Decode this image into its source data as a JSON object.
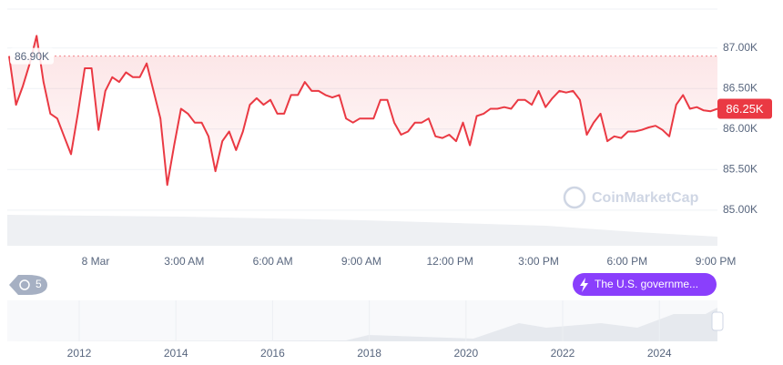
{
  "chart_data": {
    "type": "line",
    "series": [
      {
        "color": "#ea3943",
        "values": [
          86900,
          86300,
          86530,
          86810,
          87150,
          86580,
          86190,
          86130,
          85910,
          85690,
          86190,
          86750,
          86750,
          85990,
          86470,
          86640,
          86580,
          86700,
          86640,
          86640,
          86810,
          86470,
          86130,
          85310,
          85800,
          86250,
          86190,
          86080,
          86080,
          85910,
          85480,
          85850,
          85970,
          85740,
          85970,
          86300,
          86380,
          86300,
          86360,
          86190,
          86190,
          86420,
          86420,
          86580,
          86470,
          86470,
          86420,
          86390,
          86420,
          86130,
          86080,
          86130,
          86130,
          86130,
          86360,
          86360,
          86080,
          85930,
          85970,
          86080,
          86080,
          86130,
          85910,
          85890,
          85930,
          85850,
          86080,
          85800,
          86160,
          86190,
          86250,
          86250,
          86270,
          86250,
          86360,
          86360,
          86300,
          86470,
          86270,
          86380,
          86470,
          86450,
          86470,
          86360,
          85930,
          86080,
          86190,
          85850,
          85910,
          85890,
          85970,
          85970,
          85990,
          86020,
          86040,
          85990,
          85910,
          86300,
          86420,
          86250,
          86270,
          86230,
          86220,
          86250
        ]
      }
    ],
    "x_labels": [
      "8 Mar",
      "3:00 AM",
      "6:00 AM",
      "9:00 AM",
      "12:00 PM",
      "3:00 PM",
      "6:00 PM",
      "9:00 PM"
    ],
    "ylim": [
      84560,
      87480
    ],
    "yticks": [
      {
        "value": 85000,
        "label": "85.00K"
      },
      {
        "value": 85500,
        "label": "85.50K"
      },
      {
        "value": 86000,
        "label": "86.00K"
      },
      {
        "value": 86500,
        "label": "86.50K"
      },
      {
        "value": 87000,
        "label": "87.00K"
      }
    ],
    "grid": true,
    "reference": {
      "value": 86900,
      "label": "86.90K"
    },
    "last_price": {
      "value": 86250,
      "label": "86.25K"
    },
    "watermark": "CoinMarketCap",
    "events_count": 5,
    "event_label": "The U.S. governme...",
    "navigator_years": [
      2012,
      2014,
      2016,
      2018,
      2020,
      2022,
      2024
    ]
  }
}
